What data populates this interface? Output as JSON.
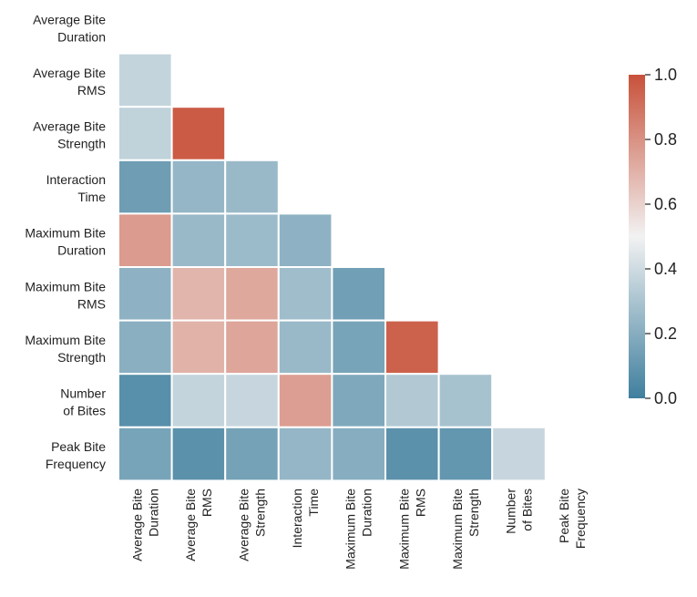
{
  "chart_data": {
    "type": "heatmap",
    "title": "",
    "xlabel": "",
    "ylabel": "",
    "variables": [
      [
        "Average Bite",
        "Duration"
      ],
      [
        "Average Bite",
        "RMS"
      ],
      [
        "Average Bite",
        "Strength"
      ],
      [
        "Interaction",
        "Time"
      ],
      [
        "Maximum Bite",
        "Duration"
      ],
      [
        "Maximum Bite",
        "RMS"
      ],
      [
        "Maximum Bite",
        "Strength"
      ],
      [
        "Number",
        "of Bites"
      ],
      [
        "Peak Bite",
        "Frequency"
      ]
    ],
    "mask": "upper-triangle-and-diagonal",
    "matrix": [
      [
        null,
        null,
        null,
        null,
        null,
        null,
        null,
        null,
        null
      ],
      [
        0.37,
        null,
        null,
        null,
        null,
        null,
        null,
        null,
        null
      ],
      [
        0.36,
        0.97,
        null,
        null,
        null,
        null,
        null,
        null,
        null
      ],
      [
        0.13,
        0.24,
        0.25,
        null,
        null,
        null,
        null,
        null,
        null
      ],
      [
        0.77,
        0.25,
        0.26,
        0.22,
        null,
        null,
        null,
        null,
        null
      ],
      [
        0.22,
        0.69,
        0.73,
        0.27,
        0.14,
        null,
        null,
        null,
        null
      ],
      [
        0.21,
        0.7,
        0.74,
        0.25,
        0.16,
        0.95,
        null,
        null,
        null
      ],
      [
        0.07,
        0.37,
        0.38,
        0.76,
        0.18,
        0.32,
        0.29,
        null,
        null
      ],
      [
        0.16,
        0.08,
        0.15,
        0.24,
        0.2,
        0.08,
        0.1,
        0.38,
        null
      ]
    ],
    "colorbar": {
      "range": [
        0.0,
        1.0
      ],
      "ticks": [
        "0.0",
        "0.2",
        "0.4",
        "0.6",
        "0.8",
        "1.0"
      ],
      "colors": {
        "low": "#3f7f9e",
        "mid": "#f2f2f2",
        "high": "#c8513a"
      }
    }
  }
}
